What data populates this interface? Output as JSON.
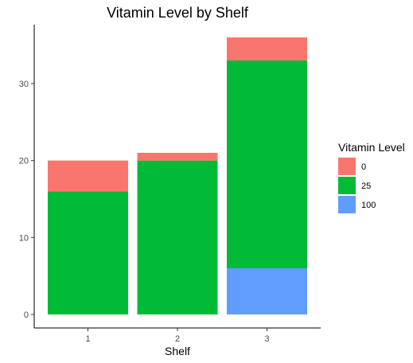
{
  "chart_data": {
    "type": "bar",
    "stacked": true,
    "title": "Vitamin Level by Shelf",
    "xlabel": "Shelf",
    "ylabel": "",
    "categories": [
      "1",
      "2",
      "3"
    ],
    "ylim": [
      0,
      36
    ],
    "yticks": [
      0,
      10,
      20,
      30
    ],
    "grid": false,
    "legend": {
      "title": "Vitamin Level",
      "position": "right"
    },
    "series": [
      {
        "name": "0",
        "color": "#F8766D",
        "values": [
          4,
          1,
          3
        ]
      },
      {
        "name": "25",
        "color": "#00BA38",
        "values": [
          16,
          20,
          27
        ]
      },
      {
        "name": "100",
        "color": "#619CFF",
        "values": [
          0,
          0,
          6
        ]
      }
    ],
    "stack_order_bottom_to_top": [
      "100",
      "25",
      "0"
    ]
  }
}
